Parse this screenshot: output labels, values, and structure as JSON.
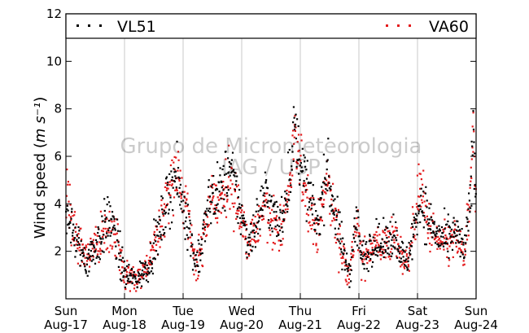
{
  "chart_data": {
    "type": "scatter",
    "ylabel": "Wind speed",
    "ylabel_unit": "m s⁻¹",
    "ylim": [
      0,
      12
    ],
    "yticks": [
      2,
      4,
      6,
      8,
      10,
      12
    ],
    "xlim": [
      0,
      7
    ],
    "grid": "vertical",
    "legend_position": "top",
    "watermark": [
      "Grupo de Micrometeorologia",
      "IAG / USP"
    ],
    "xticks": [
      {
        "x": 0,
        "day": "Sun",
        "date": "Aug-17"
      },
      {
        "x": 1,
        "day": "Mon",
        "date": "Aug-18"
      },
      {
        "x": 2,
        "day": "Tue",
        "date": "Aug-19"
      },
      {
        "x": 3,
        "day": "Wed",
        "date": "Aug-20"
      },
      {
        "x": 4,
        "day": "Thu",
        "date": "Aug-21"
      },
      {
        "x": 5,
        "day": "Fri",
        "date": "Aug-22"
      },
      {
        "x": 6,
        "day": "Sat",
        "date": "Aug-23"
      },
      {
        "x": 7,
        "day": "Sun",
        "date": "Aug-24"
      }
    ],
    "series": [
      {
        "name": "VL51",
        "color": "#000000",
        "profile": [
          [
            0.0,
            4.0,
            1.0
          ],
          [
            0.15,
            2.5,
            0.8
          ],
          [
            0.35,
            1.6,
            0.7
          ],
          [
            0.55,
            2.4,
            0.9
          ],
          [
            0.75,
            3.5,
            1.0
          ],
          [
            0.9,
            2.0,
            0.9
          ],
          [
            1.0,
            1.0,
            0.6
          ],
          [
            1.2,
            0.8,
            0.5
          ],
          [
            1.4,
            1.4,
            0.6
          ],
          [
            1.55,
            2.5,
            0.8
          ],
          [
            1.7,
            3.8,
            1.0
          ],
          [
            1.85,
            5.2,
            1.2
          ],
          [
            2.0,
            4.0,
            1.0
          ],
          [
            2.1,
            3.0,
            0.9
          ],
          [
            2.2,
            1.6,
            0.7
          ],
          [
            2.3,
            2.0,
            0.8
          ],
          [
            2.45,
            4.2,
            1.0
          ],
          [
            2.65,
            4.6,
            1.1
          ],
          [
            2.8,
            5.5,
            1.2
          ],
          [
            2.95,
            4.0,
            1.0
          ],
          [
            3.1,
            2.4,
            0.8
          ],
          [
            3.25,
            3.2,
            0.9
          ],
          [
            3.4,
            4.5,
            1.1
          ],
          [
            3.55,
            3.5,
            1.0
          ],
          [
            3.65,
            3.0,
            0.9
          ],
          [
            3.8,
            5.0,
            1.1
          ],
          [
            3.9,
            7.0,
            1.3
          ],
          [
            4.1,
            4.8,
            1.1
          ],
          [
            4.2,
            3.8,
            1.0
          ],
          [
            4.3,
            3.2,
            0.9
          ],
          [
            4.45,
            5.5,
            1.2
          ],
          [
            4.6,
            3.5,
            1.0
          ],
          [
            4.75,
            1.7,
            0.8
          ],
          [
            4.85,
            1.2,
            0.6
          ],
          [
            4.95,
            3.5,
            1.0
          ],
          [
            5.05,
            1.6,
            0.7
          ],
          [
            5.25,
            2.5,
            0.8
          ],
          [
            5.4,
            2.2,
            0.7
          ],
          [
            5.6,
            2.8,
            0.8
          ],
          [
            5.8,
            1.4,
            0.6
          ],
          [
            5.95,
            3.0,
            0.9
          ],
          [
            6.05,
            4.2,
            1.0
          ],
          [
            6.15,
            3.5,
            1.0
          ],
          [
            6.35,
            2.6,
            0.8
          ],
          [
            6.5,
            2.4,
            0.8
          ],
          [
            6.65,
            2.8,
            0.8
          ],
          [
            6.8,
            2.0,
            0.7
          ],
          [
            6.9,
            4.0,
            1.0
          ],
          [
            6.95,
            7.5,
            1.2
          ],
          [
            7.0,
            4.0,
            1.0
          ]
        ]
      },
      {
        "name": "VA60",
        "color": "#e41a1c",
        "profile": [
          [
            0.0,
            4.5,
            1.1
          ],
          [
            0.15,
            2.8,
            0.8
          ],
          [
            0.35,
            1.6,
            0.7
          ],
          [
            0.55,
            2.4,
            0.9
          ],
          [
            0.75,
            3.0,
            1.0
          ],
          [
            0.9,
            2.0,
            0.9
          ],
          [
            1.0,
            1.0,
            0.6
          ],
          [
            1.2,
            0.8,
            0.5
          ],
          [
            1.4,
            1.4,
            0.6
          ],
          [
            1.55,
            2.5,
            0.8
          ],
          [
            1.7,
            4.0,
            1.0
          ],
          [
            1.85,
            5.5,
            1.2
          ],
          [
            2.0,
            4.2,
            1.0
          ],
          [
            2.1,
            3.0,
            0.9
          ],
          [
            2.2,
            1.6,
            0.7
          ],
          [
            2.3,
            1.8,
            0.8
          ],
          [
            2.45,
            4.0,
            1.0
          ],
          [
            2.65,
            4.3,
            1.1
          ],
          [
            2.8,
            5.0,
            1.2
          ],
          [
            2.95,
            3.8,
            1.0
          ],
          [
            3.1,
            2.2,
            0.8
          ],
          [
            3.25,
            3.0,
            0.9
          ],
          [
            3.4,
            4.0,
            1.1
          ],
          [
            3.55,
            3.2,
            1.0
          ],
          [
            3.65,
            2.6,
            0.9
          ],
          [
            3.8,
            4.5,
            1.1
          ],
          [
            3.9,
            6.5,
            1.3
          ],
          [
            4.1,
            4.5,
            1.1
          ],
          [
            4.2,
            3.5,
            1.0
          ],
          [
            4.3,
            2.8,
            0.9
          ],
          [
            4.45,
            5.0,
            1.2
          ],
          [
            4.6,
            3.2,
            1.0
          ],
          [
            4.75,
            1.6,
            0.8
          ],
          [
            4.85,
            1.2,
            0.6
          ],
          [
            4.95,
            3.2,
            1.0
          ],
          [
            5.05,
            1.6,
            0.7
          ],
          [
            5.25,
            2.4,
            0.8
          ],
          [
            5.4,
            2.2,
            0.7
          ],
          [
            5.6,
            2.6,
            0.8
          ],
          [
            5.8,
            1.4,
            0.6
          ],
          [
            5.95,
            3.2,
            0.9
          ],
          [
            6.05,
            5.0,
            1.1
          ],
          [
            6.15,
            3.2,
            1.0
          ],
          [
            6.35,
            2.4,
            0.8
          ],
          [
            6.5,
            2.2,
            0.8
          ],
          [
            6.65,
            2.5,
            0.8
          ],
          [
            6.8,
            1.8,
            0.7
          ],
          [
            6.9,
            4.0,
            1.0
          ],
          [
            6.95,
            7.0,
            1.2
          ],
          [
            7.0,
            3.6,
            1.0
          ]
        ]
      }
    ]
  }
}
